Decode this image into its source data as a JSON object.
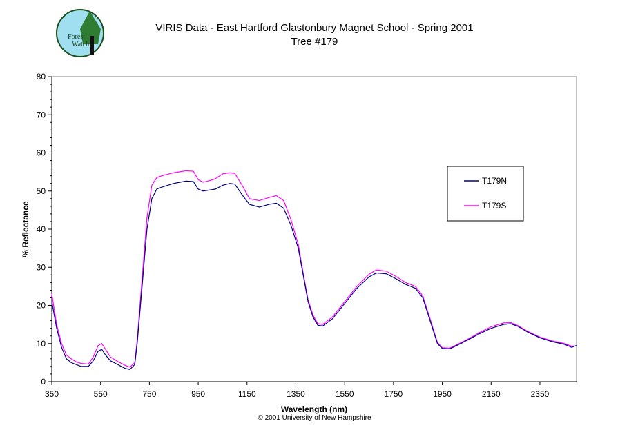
{
  "logo": {
    "text_line1": "Forest",
    "text_line2": "Watch"
  },
  "copyright": "© 2001 University of New Hampshire",
  "colors": {
    "T179N": "#000080",
    "T179S": "#ff00ff",
    "axis": "#808080"
  },
  "chart_data": {
    "type": "line",
    "title": "VIRIS Data - East Hartford Glastonbury Magnet School - Spring 2001",
    "subtitle": "Tree #179",
    "xlabel": "Wavelength (nm)",
    "ylabel": "% Reflectance",
    "xlim": [
      350,
      2500
    ],
    "ylim": [
      0,
      80
    ],
    "xticks": [
      350,
      550,
      750,
      950,
      1150,
      1350,
      1550,
      1750,
      1950,
      2150,
      2350
    ],
    "yticks": [
      0,
      10,
      20,
      30,
      40,
      50,
      60,
      70,
      80
    ],
    "grid": false,
    "legend_position": "right",
    "x": [
      350,
      370,
      390,
      410,
      430,
      450,
      470,
      500,
      520,
      540,
      555,
      570,
      590,
      620,
      650,
      670,
      690,
      700,
      720,
      740,
      760,
      780,
      800,
      850,
      900,
      930,
      950,
      970,
      1000,
      1020,
      1050,
      1080,
      1100,
      1130,
      1160,
      1200,
      1240,
      1270,
      1300,
      1330,
      1360,
      1380,
      1400,
      1420,
      1440,
      1460,
      1500,
      1550,
      1600,
      1650,
      1680,
      1720,
      1760,
      1800,
      1840,
      1870,
      1900,
      1930,
      1950,
      1980,
      2000,
      2050,
      2100,
      2150,
      2200,
      2230,
      2260,
      2300,
      2350,
      2400,
      2450,
      2480,
      2500
    ],
    "series": [
      {
        "name": "T179N",
        "values": [
          21,
          14,
          9,
          6,
          5,
          4.5,
          4,
          4,
          5.5,
          8,
          8.5,
          7,
          5.5,
          4.5,
          3.5,
          3.2,
          4.5,
          10,
          25,
          40,
          48,
          50.5,
          51,
          52,
          52.6,
          52.5,
          50.5,
          50,
          50.3,
          50.5,
          51.5,
          52,
          51.8,
          49,
          46.5,
          45.8,
          46.5,
          46.8,
          45.5,
          41,
          35,
          28,
          21,
          17,
          14.8,
          14.6,
          16.5,
          20.5,
          24.5,
          27.5,
          28.5,
          28.3,
          27,
          25.5,
          24.5,
          22,
          16,
          10,
          8.7,
          8.6,
          9.2,
          10.8,
          12.5,
          14,
          15,
          15.2,
          14.5,
          13,
          11.5,
          10.5,
          9.8,
          9,
          9.5
        ]
      },
      {
        "name": "T179S",
        "values": [
          23,
          15,
          10,
          7,
          6,
          5.2,
          4.8,
          4.6,
          6.5,
          9.5,
          10,
          8.5,
          6.5,
          5.3,
          4.3,
          3.8,
          5,
          11,
          27,
          43,
          51.5,
          53.5,
          54,
          54.8,
          55.3,
          55.2,
          53,
          52.3,
          52.8,
          53.2,
          54.5,
          54.8,
          54.6,
          51.5,
          48,
          47.5,
          48.3,
          48.8,
          47.5,
          42.5,
          36,
          28.5,
          21.5,
          17.5,
          15.2,
          15,
          17,
          21,
          25,
          28.2,
          29.3,
          29,
          27.6,
          26,
          25,
          22.5,
          16.5,
          10.3,
          8.9,
          8.8,
          9.4,
          11,
          12.8,
          14.4,
          15.4,
          15.5,
          14.7,
          13.2,
          11.7,
          10.7,
          10,
          9.3,
          9.4
        ]
      }
    ]
  }
}
